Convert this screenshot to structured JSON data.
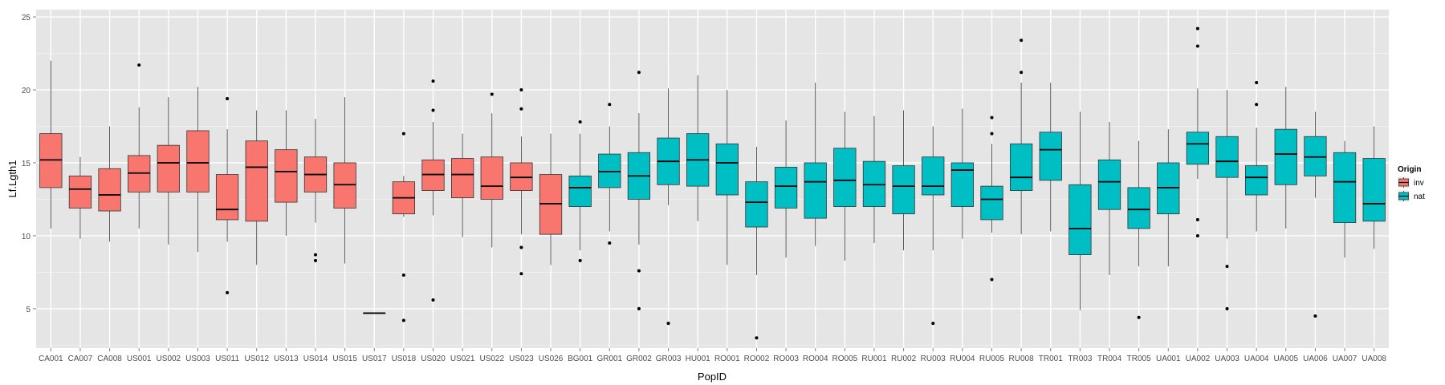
{
  "chart_data": {
    "type": "boxplot",
    "xlabel": "PopID",
    "ylabel": "Lf.Lgth1",
    "ylim": [
      2.3,
      25.5
    ],
    "yticks": [
      5,
      10,
      15,
      20,
      25
    ],
    "grid": true,
    "legend": {
      "title": "Origin",
      "position": "right",
      "entries": [
        {
          "label": "inv",
          "color": "#F8766D"
        },
        {
          "label": "nat",
          "color": "#00BFC4"
        }
      ]
    },
    "colors": {
      "panel": "#E5E5E5",
      "grid": "#FFFFFF",
      "inv": "#F8766D",
      "nat": "#00BFC4"
    },
    "categories": [
      "CA001",
      "CA007",
      "CA008",
      "US001",
      "US002",
      "US003",
      "US011",
      "US012",
      "US013",
      "US014",
      "US015",
      "US017",
      "US018",
      "US020",
      "US021",
      "US022",
      "US023",
      "US026",
      "BG001",
      "GR001",
      "GR002",
      "GR003",
      "HU001",
      "RO001",
      "RO002",
      "RO003",
      "RO004",
      "RO005",
      "RU001",
      "RU002",
      "RU003",
      "RU004",
      "RU005",
      "RU008",
      "TR001",
      "TR003",
      "TR004",
      "TR005",
      "UA001",
      "UA002",
      "UA003",
      "UA004",
      "UA005",
      "UA006",
      "UA007",
      "UA008"
    ],
    "groups": [
      "inv",
      "inv",
      "inv",
      "inv",
      "inv",
      "inv",
      "inv",
      "inv",
      "inv",
      "inv",
      "inv",
      "inv",
      "inv",
      "inv",
      "inv",
      "inv",
      "inv",
      "inv",
      "nat",
      "nat",
      "nat",
      "nat",
      "nat",
      "nat",
      "nat",
      "nat",
      "nat",
      "nat",
      "nat",
      "nat",
      "nat",
      "nat",
      "nat",
      "nat",
      "nat",
      "nat",
      "nat",
      "nat",
      "nat",
      "nat",
      "nat",
      "nat",
      "nat",
      "nat",
      "nat",
      "nat"
    ],
    "boxes": [
      {
        "min": 10.5,
        "q1": 13.3,
        "median": 15.2,
        "q3": 17.0,
        "max": 22.0,
        "outliers": []
      },
      {
        "min": 9.8,
        "q1": 11.9,
        "median": 13.2,
        "q3": 14.1,
        "max": 15.4,
        "outliers": []
      },
      {
        "min": 9.6,
        "q1": 11.7,
        "median": 12.8,
        "q3": 14.6,
        "max": 17.5,
        "outliers": []
      },
      {
        "min": 10.5,
        "q1": 13.0,
        "median": 14.3,
        "q3": 15.5,
        "max": 18.8,
        "outliers": [
          21.7
        ]
      },
      {
        "min": 9.4,
        "q1": 13.0,
        "median": 15.0,
        "q3": 16.2,
        "max": 19.5,
        "outliers": []
      },
      {
        "min": 8.9,
        "q1": 13.0,
        "median": 15.0,
        "q3": 17.2,
        "max": 20.2,
        "outliers": []
      },
      {
        "min": 9.6,
        "q1": 11.1,
        "median": 11.8,
        "q3": 14.2,
        "max": 17.3,
        "outliers": [
          19.4,
          6.1
        ]
      },
      {
        "min": 8.0,
        "q1": 11.0,
        "median": 14.7,
        "q3": 16.5,
        "max": 18.6,
        "outliers": []
      },
      {
        "min": 10.0,
        "q1": 12.3,
        "median": 14.4,
        "q3": 15.9,
        "max": 18.6,
        "outliers": []
      },
      {
        "min": 10.9,
        "q1": 13.0,
        "median": 14.2,
        "q3": 15.4,
        "max": 18.0,
        "outliers": [
          8.7,
          8.3
        ]
      },
      {
        "min": 8.1,
        "q1": 11.9,
        "median": 13.5,
        "q3": 15.0,
        "max": 19.5,
        "outliers": []
      },
      {
        "min": 4.7,
        "q1": 4.7,
        "median": 4.7,
        "q3": 4.7,
        "max": 4.7,
        "outliers": []
      },
      {
        "min": 11.3,
        "q1": 11.5,
        "median": 12.6,
        "q3": 13.7,
        "max": 14.1,
        "outliers": [
          17.0,
          7.3,
          4.2
        ]
      },
      {
        "min": 11.4,
        "q1": 13.1,
        "median": 14.2,
        "q3": 15.2,
        "max": 17.8,
        "outliers": [
          20.6,
          18.6,
          5.6
        ]
      },
      {
        "min": 9.9,
        "q1": 12.6,
        "median": 14.2,
        "q3": 15.3,
        "max": 17.0,
        "outliers": []
      },
      {
        "min": 9.2,
        "q1": 12.5,
        "median": 13.4,
        "q3": 15.4,
        "max": 18.4,
        "outliers": [
          19.7
        ]
      },
      {
        "min": 10.1,
        "q1": 13.1,
        "median": 14.0,
        "q3": 15.0,
        "max": 16.8,
        "outliers": [
          20.0,
          18.7,
          9.2,
          7.4
        ]
      },
      {
        "min": 8.0,
        "q1": 10.1,
        "median": 12.2,
        "q3": 14.2,
        "max": 17.0,
        "outliers": []
      },
      {
        "min": 9.0,
        "q1": 12.0,
        "median": 13.3,
        "q3": 14.1,
        "max": 17.0,
        "outliers": [
          17.8,
          8.3
        ]
      },
      {
        "min": 10.3,
        "q1": 13.3,
        "median": 14.4,
        "q3": 15.6,
        "max": 17.5,
        "outliers": [
          19.0,
          9.5
        ]
      },
      {
        "min": 9.4,
        "q1": 12.5,
        "median": 14.1,
        "q3": 15.7,
        "max": 18.4,
        "outliers": [
          21.2,
          7.6,
          5.0
        ]
      },
      {
        "min": 12.1,
        "q1": 13.5,
        "median": 15.1,
        "q3": 16.7,
        "max": 20.1,
        "outliers": [
          4.0
        ]
      },
      {
        "min": 11.0,
        "q1": 13.4,
        "median": 15.2,
        "q3": 17.0,
        "max": 21.0,
        "outliers": []
      },
      {
        "min": 8.0,
        "q1": 12.8,
        "median": 15.0,
        "q3": 16.3,
        "max": 20.0,
        "outliers": []
      },
      {
        "min": 7.3,
        "q1": 10.6,
        "median": 12.3,
        "q3": 13.7,
        "max": 16.1,
        "outliers": [
          3.0
        ]
      },
      {
        "min": 8.5,
        "q1": 11.9,
        "median": 13.4,
        "q3": 14.7,
        "max": 17.9,
        "outliers": []
      },
      {
        "min": 9.3,
        "q1": 11.2,
        "median": 13.7,
        "q3": 15.0,
        "max": 20.5,
        "outliers": []
      },
      {
        "min": 8.3,
        "q1": 12.0,
        "median": 13.8,
        "q3": 16.0,
        "max": 18.5,
        "outliers": []
      },
      {
        "min": 9.5,
        "q1": 12.0,
        "median": 13.5,
        "q3": 15.1,
        "max": 18.2,
        "outliers": []
      },
      {
        "min": 9.0,
        "q1": 11.5,
        "median": 13.4,
        "q3": 14.8,
        "max": 18.6,
        "outliers": []
      },
      {
        "min": 9.0,
        "q1": 12.8,
        "median": 13.4,
        "q3": 15.4,
        "max": 17.5,
        "outliers": [
          4.0
        ]
      },
      {
        "min": 9.8,
        "q1": 12.0,
        "median": 14.5,
        "q3": 15.0,
        "max": 18.7,
        "outliers": []
      },
      {
        "min": 10.2,
        "q1": 11.1,
        "median": 12.5,
        "q3": 13.4,
        "max": 16.3,
        "outliers": [
          18.1,
          17.0,
          7.0
        ]
      },
      {
        "min": 10.1,
        "q1": 13.1,
        "median": 14.0,
        "q3": 16.3,
        "max": 20.5,
        "outliers": [
          23.4,
          21.2
        ]
      },
      {
        "min": 10.3,
        "q1": 13.8,
        "median": 15.9,
        "q3": 17.1,
        "max": 20.5,
        "outliers": []
      },
      {
        "min": 4.9,
        "q1": 8.7,
        "median": 10.5,
        "q3": 13.5,
        "max": 18.5,
        "outliers": []
      },
      {
        "min": 7.3,
        "q1": 11.8,
        "median": 13.7,
        "q3": 15.2,
        "max": 17.8,
        "outliers": []
      },
      {
        "min": 7.9,
        "q1": 10.5,
        "median": 11.8,
        "q3": 13.3,
        "max": 16.5,
        "outliers": [
          4.4
        ]
      },
      {
        "min": 7.9,
        "q1": 11.5,
        "median": 13.3,
        "q3": 15.0,
        "max": 17.3,
        "outliers": []
      },
      {
        "min": 13.9,
        "q1": 14.9,
        "median": 16.3,
        "q3": 17.1,
        "max": 20.1,
        "outliers": [
          24.2,
          23.0,
          11.1,
          10.0
        ]
      },
      {
        "min": 9.8,
        "q1": 14.0,
        "median": 15.1,
        "q3": 16.8,
        "max": 20.0,
        "outliers": [
          7.9,
          5.0
        ]
      },
      {
        "min": 10.3,
        "q1": 12.8,
        "median": 14.0,
        "q3": 14.8,
        "max": 17.4,
        "outliers": [
          20.5,
          19.0
        ]
      },
      {
        "min": 10.5,
        "q1": 13.5,
        "median": 15.6,
        "q3": 17.3,
        "max": 20.2,
        "outliers": []
      },
      {
        "min": 12.6,
        "q1": 14.1,
        "median": 15.4,
        "q3": 16.8,
        "max": 18.5,
        "outliers": [
          4.5
        ]
      },
      {
        "min": 8.5,
        "q1": 10.9,
        "median": 13.7,
        "q3": 15.7,
        "max": 16.5,
        "outliers": []
      },
      {
        "min": 9.1,
        "q1": 11.0,
        "median": 12.2,
        "q3": 15.3,
        "max": 17.5,
        "outliers": []
      }
    ]
  }
}
